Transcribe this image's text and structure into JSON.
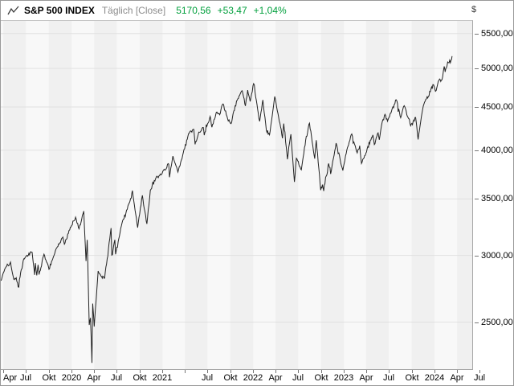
{
  "header": {
    "symbol": "S&P 500 INDEX",
    "timeframe": "Täglich [Close]",
    "last": "5170,56",
    "change_abs": "+53,47",
    "change_pct": "+1,04%"
  },
  "colors": {
    "quote_green": "#009f3c",
    "timeframe_gray": "#8c8c8c",
    "band_dark": "#f0f0f0",
    "band_light": "#f8f8f8",
    "gridline": "#e1e1e1",
    "price_line": "#222222",
    "tick_mark": "#767676",
    "axis_text": "#000000",
    "plot_border": "#a8a8a8",
    "outer_border": "#999999"
  },
  "chart_data": {
    "type": "line",
    "title": "S&P 500 INDEX",
    "series_name": "S&P 500 Index daily close",
    "currency": "$",
    "y_scale": "log",
    "ylim": [
      2199,
      5693
    ],
    "x_range": [
      "2019-03-22",
      "2024-06-01"
    ],
    "grid": "horizontal",
    "legend": "none",
    "y_ticks": [
      {
        "value": 5500,
        "label": "5500,00"
      },
      {
        "value": 5000,
        "label": "5000,00"
      },
      {
        "value": 4500,
        "label": "4500,00"
      },
      {
        "value": 4000,
        "label": "4000,00"
      },
      {
        "value": 3500,
        "label": "3500,00"
      },
      {
        "value": 3000,
        "label": "3000,00"
      },
      {
        "value": 2500,
        "label": "2500,00"
      }
    ],
    "x_ticks": [
      {
        "date": "2019-04-01",
        "label": "Apr"
      },
      {
        "date": "2019-07-01",
        "label": "Jul"
      },
      {
        "date": "2019-10-01",
        "label": "Okt"
      },
      {
        "date": "2020-01-01",
        "label": "2020"
      },
      {
        "date": "2020-04-01",
        "label": "Apr"
      },
      {
        "date": "2020-07-01",
        "label": "Jul"
      },
      {
        "date": "2020-10-01",
        "label": "Okt"
      },
      {
        "date": "2021-01-01",
        "label": "2021"
      },
      {
        "date": "2021-04-01",
        "label": ""
      },
      {
        "date": "2021-07-01",
        "label": "Jul"
      },
      {
        "date": "2021-10-01",
        "label": "Okt"
      },
      {
        "date": "2022-01-01",
        "label": "2022"
      },
      {
        "date": "2022-04-01",
        "label": "Apr"
      },
      {
        "date": "2022-07-01",
        "label": "Jul"
      },
      {
        "date": "2022-10-01",
        "label": "Okt"
      },
      {
        "date": "2023-01-01",
        "label": "2023"
      },
      {
        "date": "2023-04-01",
        "label": "Apr"
      },
      {
        "date": "2023-07-01",
        "label": "Jul"
      },
      {
        "date": "2023-10-01",
        "label": "Okt"
      },
      {
        "date": "2024-01-01",
        "label": "2024"
      },
      {
        "date": "2024-04-01",
        "label": "Apr"
      },
      {
        "date": "2024-07-01",
        "label": "Jul"
      }
    ],
    "shaded_quarters": "Q2_and_Q4",
    "points": [
      [
        "2019-03-22",
        2801
      ],
      [
        "2019-04-12",
        2907
      ],
      [
        "2019-04-30",
        2946
      ],
      [
        "2019-05-13",
        2812
      ],
      [
        "2019-05-23",
        2822
      ],
      [
        "2019-05-31",
        2752
      ],
      [
        "2019-06-20",
        2954
      ],
      [
        "2019-07-03",
        2996
      ],
      [
        "2019-07-26",
        3026
      ],
      [
        "2019-08-05",
        2845
      ],
      [
        "2019-08-08",
        2938
      ],
      [
        "2019-08-14",
        2841
      ],
      [
        "2019-08-19",
        2924
      ],
      [
        "2019-08-23",
        2847
      ],
      [
        "2019-09-12",
        3010
      ],
      [
        "2019-10-02",
        2888
      ],
      [
        "2019-10-28",
        3039
      ],
      [
        "2019-11-27",
        3154
      ],
      [
        "2019-12-03",
        3093
      ],
      [
        "2019-12-27",
        3240
      ],
      [
        "2020-01-17",
        3330
      ],
      [
        "2020-01-31",
        3226
      ],
      [
        "2020-02-19",
        3386
      ],
      [
        "2020-02-28",
        2954
      ],
      [
        "2020-03-04",
        3130
      ],
      [
        "2020-03-12",
        2481
      ],
      [
        "2020-03-17",
        2529
      ],
      [
        "2020-03-23",
        2237
      ],
      [
        "2020-03-26",
        2630
      ],
      [
        "2020-04-01",
        2470
      ],
      [
        "2020-04-17",
        2875
      ],
      [
        "2020-05-01",
        2831
      ],
      [
        "2020-05-13",
        2820
      ],
      [
        "2020-06-08",
        3232
      ],
      [
        "2020-06-11",
        3002
      ],
      [
        "2020-06-23",
        3131
      ],
      [
        "2020-06-26",
        3009
      ],
      [
        "2020-07-22",
        3276
      ],
      [
        "2020-08-28",
        3508
      ],
      [
        "2020-09-02",
        3581
      ],
      [
        "2020-09-23",
        3237
      ],
      [
        "2020-10-12",
        3534
      ],
      [
        "2020-10-30",
        3270
      ],
      [
        "2020-11-13",
        3585
      ],
      [
        "2020-12-04",
        3699
      ],
      [
        "2020-12-31",
        3756
      ],
      [
        "2021-01-26",
        3850
      ],
      [
        "2021-01-29",
        3714
      ],
      [
        "2021-02-12",
        3935
      ],
      [
        "2021-03-04",
        3768
      ],
      [
        "2021-03-26",
        3975
      ],
      [
        "2021-04-16",
        4185
      ],
      [
        "2021-05-07",
        4233
      ],
      [
        "2021-05-12",
        4063
      ],
      [
        "2021-05-27",
        4201
      ],
      [
        "2021-06-14",
        4255
      ],
      [
        "2021-06-18",
        4166
      ],
      [
        "2021-07-12",
        4385
      ],
      [
        "2021-07-19",
        4258
      ],
      [
        "2021-08-06",
        4437
      ],
      [
        "2021-08-19",
        4406
      ],
      [
        "2021-08-30",
        4529
      ],
      [
        "2021-09-02",
        4537
      ],
      [
        "2021-09-20",
        4358
      ],
      [
        "2021-10-04",
        4300
      ],
      [
        "2021-10-26",
        4575
      ],
      [
        "2021-11-18",
        4705
      ],
      [
        "2021-12-01",
        4513
      ],
      [
        "2021-12-10",
        4712
      ],
      [
        "2021-12-20",
        4568
      ],
      [
        "2022-01-03",
        4797
      ],
      [
        "2022-01-27",
        4327
      ],
      [
        "2022-02-09",
        4587
      ],
      [
        "2022-02-23",
        4226
      ],
      [
        "2022-03-08",
        4171
      ],
      [
        "2022-03-29",
        4631
      ],
      [
        "2022-04-29",
        4132
      ],
      [
        "2022-05-04",
        4300
      ],
      [
        "2022-05-19",
        3901
      ],
      [
        "2022-06-02",
        4177
      ],
      [
        "2022-06-16",
        3667
      ],
      [
        "2022-06-24",
        3912
      ],
      [
        "2022-07-14",
        3790
      ],
      [
        "2022-08-03",
        4155
      ],
      [
        "2022-08-16",
        4305
      ],
      [
        "2022-09-06",
        3908
      ],
      [
        "2022-09-12",
        4110
      ],
      [
        "2022-09-30",
        3586
      ],
      [
        "2022-10-07",
        3640
      ],
      [
        "2022-10-12",
        3577
      ],
      [
        "2022-11-01",
        3856
      ],
      [
        "2022-11-09",
        3748
      ],
      [
        "2022-12-01",
        4077
      ],
      [
        "2022-12-28",
        3783
      ],
      [
        "2023-01-13",
        3999
      ],
      [
        "2023-02-02",
        4180
      ],
      [
        "2023-02-24",
        3970
      ],
      [
        "2023-03-06",
        4048
      ],
      [
        "2023-03-13",
        3856
      ],
      [
        "2023-04-28",
        4169
      ],
      [
        "2023-05-04",
        4061
      ],
      [
        "2023-05-19",
        4192
      ],
      [
        "2023-05-24",
        4115
      ],
      [
        "2023-06-02",
        4282
      ],
      [
        "2023-06-16",
        4410
      ],
      [
        "2023-06-26",
        4329
      ],
      [
        "2023-07-31",
        4589
      ],
      [
        "2023-08-18",
        4370
      ],
      [
        "2023-09-01",
        4516
      ],
      [
        "2023-09-27",
        4275
      ],
      [
        "2023-10-17",
        4373
      ],
      [
        "2023-10-27",
        4117
      ],
      [
        "2023-11-17",
        4514
      ],
      [
        "2023-12-28",
        4783
      ],
      [
        "2024-01-05",
        4697
      ],
      [
        "2024-01-19",
        4840
      ],
      [
        "2024-01-31",
        4846
      ],
      [
        "2024-02-09",
        5027
      ],
      [
        "2024-02-13",
        4953
      ],
      [
        "2024-02-23",
        5089
      ],
      [
        "2024-03-05",
        5078
      ],
      [
        "2024-03-12",
        5170.56
      ]
    ]
  }
}
